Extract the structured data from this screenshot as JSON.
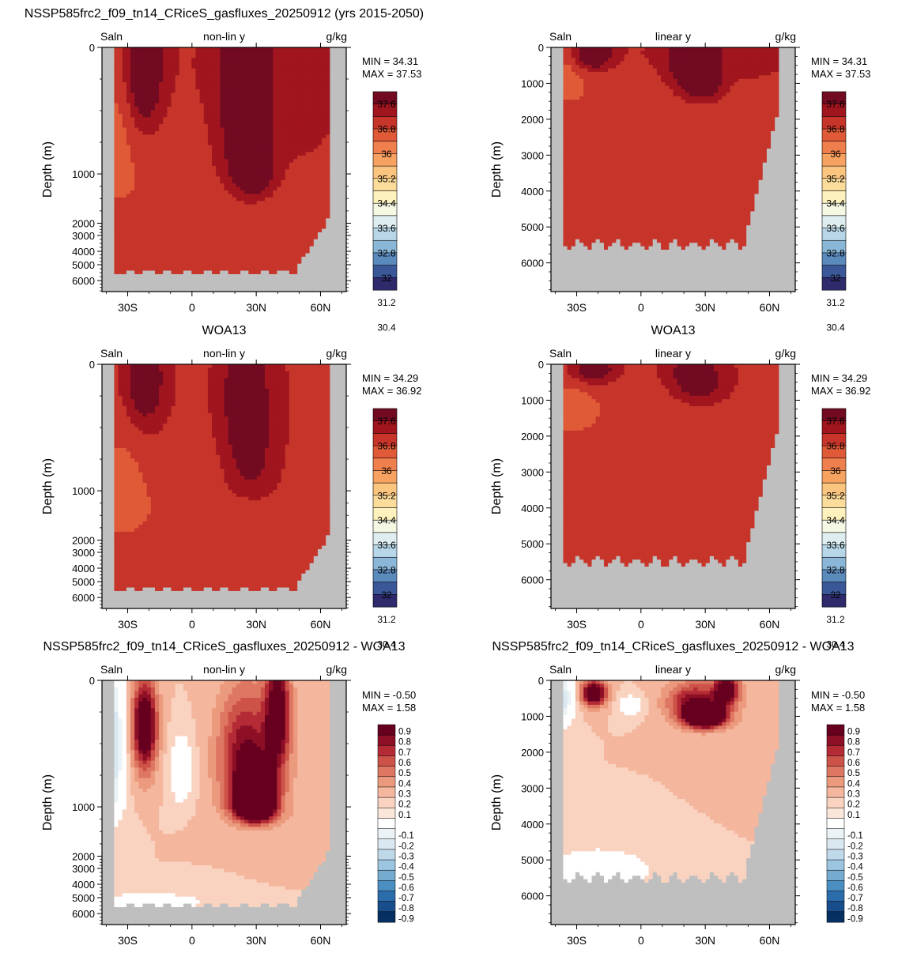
{
  "chart_data": [
    {
      "type": "heatmap",
      "title": "NSSP585frc2_f09_tn14_CRiceS_gasfluxes_20250912 (yrs 2015-2050)",
      "left_label": "Saln",
      "center_label": "non-lin y",
      "units": "g/kg",
      "ylabel": "Depth (m)",
      "xticks": [
        "30S",
        "0",
        "30N",
        "60N"
      ],
      "yticks": [
        "0",
        "1000",
        "2000",
        "3000",
        "4000",
        "5000",
        "6000"
      ],
      "stats": [
        "MIN =  34.31",
        "MAX =  37.53"
      ],
      "colorbar": [
        "37.6",
        "36.8",
        "36",
        "35.2",
        "34.4",
        "33.6",
        "32.8",
        "32",
        "31.2",
        "30.4"
      ]
    },
    {
      "type": "heatmap",
      "title": "",
      "left_label": "Saln",
      "center_label": "linear y",
      "units": "g/kg",
      "ylabel": "Depth (m)",
      "xticks": [
        "30S",
        "0",
        "30N",
        "60N"
      ],
      "yticks": [
        "0",
        "1000",
        "2000",
        "3000",
        "4000",
        "5000",
        "6000"
      ],
      "stats": [
        "MIN =  34.31",
        "MAX =  37.53"
      ],
      "colorbar": [
        "37.6",
        "36.8",
        "36",
        "35.2",
        "34.4",
        "33.6",
        "32.8",
        "32",
        "31.2",
        "30.4"
      ]
    },
    {
      "type": "heatmap",
      "title": "WOA13",
      "left_label": "Saln",
      "center_label": "non-lin y",
      "units": "g/kg",
      "ylabel": "Depth (m)",
      "xticks": [
        "30S",
        "0",
        "30N",
        "60N"
      ],
      "yticks": [
        "0",
        "1000",
        "2000",
        "3000",
        "4000",
        "5000",
        "6000"
      ],
      "stats": [
        "MIN =  34.29",
        "MAX =  36.92"
      ],
      "colorbar": [
        "37.6",
        "36.8",
        "36",
        "35.2",
        "34.4",
        "33.6",
        "32.8",
        "32",
        "31.2",
        "30.4"
      ]
    },
    {
      "type": "heatmap",
      "title": "WOA13",
      "left_label": "Saln",
      "center_label": "linear y",
      "units": "g/kg",
      "ylabel": "Depth (m)",
      "xticks": [
        "30S",
        "0",
        "30N",
        "60N"
      ],
      "yticks": [
        "0",
        "1000",
        "2000",
        "3000",
        "4000",
        "5000",
        "6000"
      ],
      "stats": [
        "MIN =  34.29",
        "MAX =  36.92"
      ],
      "colorbar": [
        "37.6",
        "36.8",
        "36",
        "35.2",
        "34.4",
        "33.6",
        "32.8",
        "32",
        "31.2",
        "30.4"
      ]
    },
    {
      "type": "heatmap",
      "title": "NSSP585frc2_f09_tn14_CRiceS_gasfluxes_20250912 - WOA13",
      "left_label": "Saln",
      "center_label": "non-lin y",
      "units": "g/kg",
      "ylabel": "Depth (m)",
      "xticks": [
        "30S",
        "0",
        "30N",
        "60N"
      ],
      "yticks": [
        "0",
        "1000",
        "2000",
        "3000",
        "4000",
        "5000",
        "6000"
      ],
      "stats": [
        "MIN = -0.50",
        "MAX =  1.58"
      ],
      "colorbar": [
        "0.9",
        "0.8",
        "0.7",
        "0.6",
        "0.5",
        "0.4",
        "0.3",
        "0.2",
        "0.1",
        "-0.1",
        "-0.2",
        "-0.3",
        "-0.4",
        "-0.5",
        "-0.6",
        "-0.7",
        "-0.8",
        "-0.9"
      ]
    },
    {
      "type": "heatmap",
      "title": "NSSP585frc2_f09_tn14_CRiceS_gasfluxes_20250912 - WOA13",
      "left_label": "Saln",
      "center_label": "linear y",
      "units": "g/kg",
      "ylabel": "Depth (m)",
      "xticks": [
        "30S",
        "0",
        "30N",
        "60N"
      ],
      "yticks": [
        "0",
        "1000",
        "2000",
        "3000",
        "4000",
        "5000",
        "6000"
      ],
      "stats": [
        "MIN = -0.50",
        "MAX =  1.58"
      ],
      "colorbar": [
        "0.9",
        "0.8",
        "0.7",
        "0.6",
        "0.5",
        "0.4",
        "0.3",
        "0.2",
        "0.1",
        "-0.1",
        "-0.2",
        "-0.3",
        "-0.4",
        "-0.5",
        "-0.6",
        "-0.7",
        "-0.8",
        "-0.9"
      ]
    }
  ],
  "colors": {
    "salinity_scale": [
      "#2e2a6b",
      "#3a5798",
      "#5b8abd",
      "#8ab7d7",
      "#b7d7e8",
      "#deeef0",
      "#f5f9e3",
      "#fdf2bd",
      "#fcdc9a",
      "#fbc47f",
      "#f7a261",
      "#ef7f4c",
      "#e05a38",
      "#c7352a",
      "#a1151f",
      "#720b21"
    ],
    "anomaly_scale": [
      "#053061",
      "#174d8b",
      "#2b6cab",
      "#4a8ec2",
      "#76abd0",
      "#9cc5e0",
      "#c0d9ea",
      "#dae8f1",
      "#ecf3f7",
      "#ffffff",
      "#fbe6da",
      "#f9d3c0",
      "#f4b69d",
      "#ec9a7d",
      "#de7762",
      "#cd5349",
      "#b52b35",
      "#8d0f26",
      "#67001f"
    ],
    "land": "#bfbfbf"
  }
}
